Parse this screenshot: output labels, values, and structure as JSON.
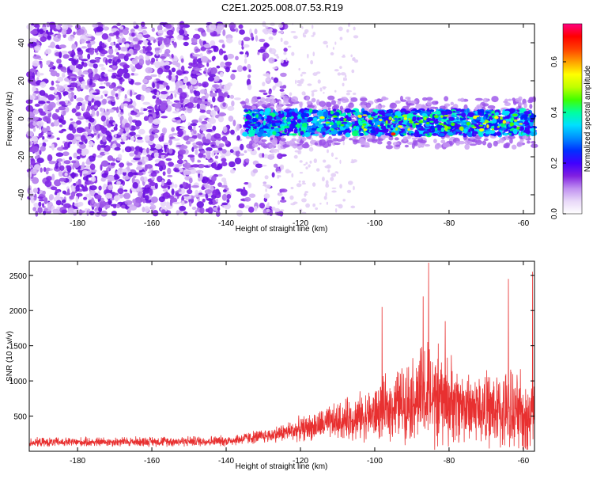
{
  "title": "C2E1.2025.008.07.53.R19",
  "chart_data": [
    {
      "type": "heatmap",
      "xlabel": "Height of straight line (km)",
      "ylabel": "Frequency (Hz)",
      "xlim": [
        -193,
        -57
      ],
      "ylim": [
        -50,
        50
      ],
      "xticks": [
        -180,
        -160,
        -140,
        -120,
        -100,
        -80,
        -60
      ],
      "yticks": [
        -40,
        -20,
        0,
        20,
        40
      ],
      "colorbar": {
        "label": "Normalized spectral amplitude",
        "range": [
          0,
          0.75
        ],
        "ticks": [
          0.0,
          0.2,
          0.4,
          0.6
        ],
        "colors": [
          "#ffffff",
          "#e8d8f8",
          "#c090f0",
          "#8020e0",
          "#4000ff",
          "#0030ff",
          "#0090ff",
          "#00e0ff",
          "#00ffa0",
          "#40ff00",
          "#c0ff00",
          "#ffff00",
          "#ffa000",
          "#ff4000",
          "#ff0000",
          "#ff0080"
        ]
      },
      "features": {
        "noise_region_end_km": -130,
        "signal_band_start_km": -135,
        "signal_band_center_hz": [
          -3,
          3
        ],
        "peak_location": {
          "x": -95,
          "y": -8
        }
      }
    },
    {
      "type": "line",
      "xlabel": "Height of straight line (km)",
      "ylabel": "SNR (10 * v/v)",
      "xlim": [
        -193,
        -57
      ],
      "ylim": [
        0,
        2700
      ],
      "xticks": [
        -180,
        -160,
        -140,
        -120,
        -100,
        -80,
        -60
      ],
      "yticks": [
        500,
        1000,
        1500,
        2000,
        2500
      ],
      "series": [
        {
          "color": "#e83030",
          "envelope": [
            {
              "x": -193,
              "base": 120,
              "amp": 150
            },
            {
              "x": -140,
              "base": 140,
              "amp": 180
            },
            {
              "x": -128,
              "base": 220,
              "amp": 250
            },
            {
              "x": -115,
              "base": 350,
              "amp": 500
            },
            {
              "x": -100,
              "base": 500,
              "amp": 900
            },
            {
              "x": -90,
              "base": 700,
              "amp": 1400
            },
            {
              "x": -86,
              "base": 700,
              "amp": 1900
            },
            {
              "x": -75,
              "base": 600,
              "amp": 1200
            },
            {
              "x": -65,
              "base": 500,
              "amp": 1300
            },
            {
              "x": -57,
              "base": 450,
              "amp": 1500
            }
          ],
          "peaks": [
            {
              "x": -85.5,
              "y": 2680
            },
            {
              "x": -98,
              "y": 2050
            },
            {
              "x": -64,
              "y": 2450
            },
            {
              "x": -57.5,
              "y": 2550
            },
            {
              "x": -87,
              "y": 2200
            },
            {
              "x": -81,
              "y": 1850
            }
          ]
        }
      ]
    }
  ]
}
